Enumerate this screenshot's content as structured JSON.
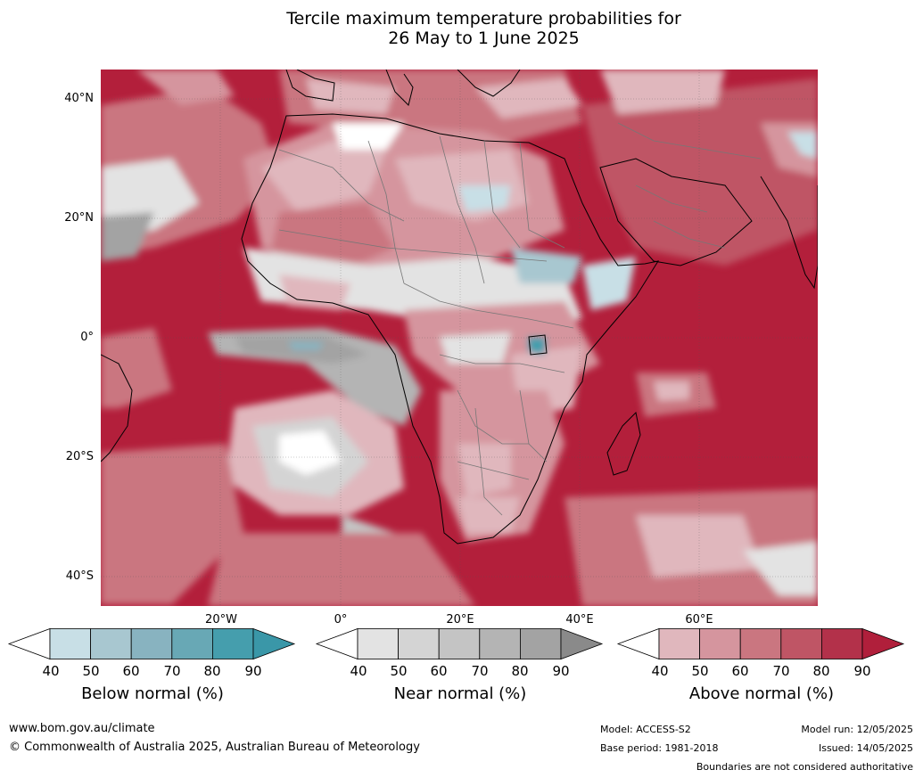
{
  "title_line1": "Tercile maximum temperature probabilities for",
  "title_line2": "26 May to 1 June 2025",
  "lat_labels": [
    "40°N",
    "20°N",
    "0°",
    "20°S",
    "40°S"
  ],
  "lon_labels": [
    "20°W",
    "0°",
    "20°E",
    "40°E",
    "60°E"
  ],
  "colorbars": [
    {
      "title": "Below normal (%)",
      "ticks": [
        "40",
        "50",
        "60",
        "70",
        "80",
        "90"
      ],
      "colors": [
        "#ffffff",
        "#c8dfe6",
        "#a8c7d0",
        "#88b3c0",
        "#68a8b5",
        "#459ead",
        "#3a97a8"
      ]
    },
    {
      "title": "Near normal (%)",
      "ticks": [
        "40",
        "50",
        "60",
        "70",
        "80",
        "90"
      ],
      "colors": [
        "#ffffff",
        "#e3e3e3",
        "#d4d4d4",
        "#c4c4c4",
        "#b4b4b4",
        "#a3a3a3",
        "#8a8a8a"
      ]
    },
    {
      "title": "Above normal (%)",
      "ticks": [
        "40",
        "50",
        "60",
        "70",
        "80",
        "90"
      ],
      "colors": [
        "#ffffff",
        "#e0b7bd",
        "#d5959e",
        "#ca7680",
        "#bf5565",
        "#b3314a",
        "#b01f3b"
      ]
    }
  ],
  "footer": {
    "website": "www.bom.gov.au/climate",
    "copyright": "© Commonwealth of Australia 2025, Australian Bureau of Meteorology",
    "model": "Model: ACCESS-S2",
    "base_period": "Base period: 1981-2018",
    "model_run": "Model run: 12/05/2025",
    "issued": "Issued: 14/05/2025",
    "disclaimer": "Boundaries are not considered authoritative"
  }
}
